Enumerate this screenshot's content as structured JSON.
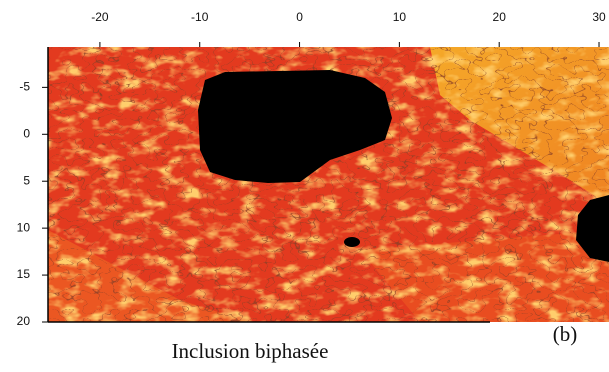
{
  "chart_data": {
    "type": "heatmap",
    "caption": "Inclusion biphasée",
    "panel_label": "(b)",
    "xlim": [
      -25.2,
      31
    ],
    "ylim": [
      -9.3,
      20
    ],
    "xticks": [
      -20,
      -10,
      0,
      10,
      20,
      30
    ],
    "yticks": [
      -5,
      0,
      5,
      10,
      15,
      20
    ],
    "x_axis": "top",
    "y_inverted": true
  }
}
